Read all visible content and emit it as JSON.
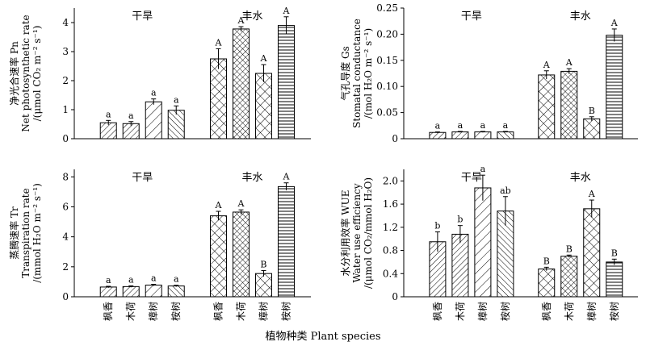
{
  "xlabel": "植物种类 Plant species",
  "chart_data": [
    {
      "type": "bar",
      "ylabel_lines": [
        "净光合速率 Pn",
        "Net photosynthetic rate",
        "/(μmol CO₂ m⁻² s⁻¹)"
      ],
      "groups": [
        {
          "name": "干旱",
          "categories": [
            "枫香",
            "木荷",
            "樟树",
            "桉树"
          ],
          "values": [
            0.55,
            0.52,
            1.27,
            0.98
          ],
          "errors": [
            0.08,
            0.07,
            0.1,
            0.15
          ],
          "letters": [
            "a",
            "a",
            "a",
            "a"
          ]
        },
        {
          "name": "丰水",
          "categories": [
            "枫香",
            "木荷",
            "樟树",
            "桉树"
          ],
          "values": [
            2.75,
            3.78,
            2.25,
            3.9
          ],
          "errors": [
            0.35,
            0.08,
            0.3,
            0.3
          ],
          "letters": [
            "A",
            "A",
            "A",
            "A"
          ]
        }
      ],
      "ylim": [
        0,
        4.5
      ],
      "yticks": [
        "0",
        "1",
        "2",
        "3",
        "4"
      ],
      "ytick_values": [
        0,
        1,
        2,
        3,
        4
      ]
    },
    {
      "type": "bar",
      "ylabel_lines": [
        "气孔导度 Gs",
        "Stomatal conductance",
        "/(mol H₂O m⁻² s⁻¹)"
      ],
      "groups": [
        {
          "name": "干旱",
          "categories": [
            "枫香",
            "木荷",
            "樟树",
            "桉树"
          ],
          "values": [
            0.012,
            0.013,
            0.013,
            0.013
          ],
          "errors": [
            0.001,
            0.001,
            0.001,
            0.001
          ],
          "letters": [
            "a",
            "a",
            "a",
            "a"
          ]
        },
        {
          "name": "丰水",
          "categories": [
            "枫香",
            "木荷",
            "樟树",
            "桉树"
          ],
          "values": [
            0.122,
            0.129,
            0.038,
            0.198
          ],
          "errors": [
            0.008,
            0.005,
            0.004,
            0.012
          ],
          "letters": [
            "A",
            "A",
            "B",
            "A"
          ]
        }
      ],
      "ylim": [
        0,
        0.25
      ],
      "yticks": [
        "0",
        "0.05",
        "0.10",
        "0.15",
        "0.20",
        "0.25"
      ],
      "ytick_values": [
        0,
        0.05,
        0.1,
        0.15,
        0.2,
        0.25
      ]
    },
    {
      "type": "bar",
      "ylabel_lines": [
        "蒸腾速率 Tr",
        "Transpiration rate",
        "/(mmol H₂O m⁻² s⁻¹)"
      ],
      "groups": [
        {
          "name": "干旱",
          "categories": [
            "枫香",
            "木荷",
            "樟树",
            "桉树"
          ],
          "values": [
            0.65,
            0.68,
            0.78,
            0.72
          ],
          "errors": [
            0.05,
            0.05,
            0.05,
            0.05
          ],
          "letters": [
            "a",
            "a",
            "a",
            "a"
          ]
        },
        {
          "name": "丰水",
          "categories": [
            "枫香",
            "木荷",
            "樟树",
            "桉树"
          ],
          "values": [
            5.4,
            5.65,
            1.55,
            7.35
          ],
          "errors": [
            0.3,
            0.15,
            0.2,
            0.25
          ],
          "letters": [
            "A",
            "A",
            "B",
            "A"
          ]
        }
      ],
      "ylim": [
        0,
        8.5
      ],
      "yticks": [
        "0",
        "2",
        "4",
        "6",
        "8"
      ],
      "ytick_values": [
        0,
        2,
        4,
        6,
        8
      ]
    },
    {
      "type": "bar",
      "ylabel_lines": [
        "水分利用效率 WUE",
        "Water use efficiency",
        "/(μmol CO₂/mmol H₂O)"
      ],
      "groups": [
        {
          "name": "干旱",
          "categories": [
            "枫香",
            "木荷",
            "樟树",
            "桉树"
          ],
          "values": [
            0.95,
            1.08,
            1.88,
            1.48
          ],
          "errors": [
            0.17,
            0.15,
            0.22,
            0.25
          ],
          "letters": [
            "b",
            "b",
            "a",
            "ab"
          ]
        },
        {
          "name": "丰水",
          "categories": [
            "枫香",
            "木荷",
            "樟树",
            "桉树"
          ],
          "values": [
            0.48,
            0.7,
            1.52,
            0.6
          ],
          "errors": [
            0.03,
            0.02,
            0.15,
            0.05
          ],
          "letters": [
            "B",
            "B",
            "A",
            "B"
          ]
        }
      ],
      "ylim": [
        0,
        2.2
      ],
      "yticks": [
        "0",
        "0.4",
        "0.8",
        "1.2",
        "1.6",
        "2.0"
      ],
      "ytick_values": [
        0,
        0.4,
        0.8,
        1.2,
        1.6,
        2.0
      ]
    }
  ]
}
